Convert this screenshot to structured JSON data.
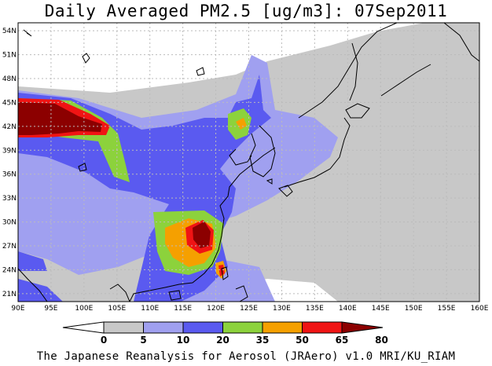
{
  "title": "Daily Averaged PM2.5 [ug/m3]: 07Sep2011",
  "credit": "The Japanese Reanalysis for Aerosol (JRAero) v1.0 MRI/KU_RIAM",
  "map": {
    "lon_range": [
      90,
      160
    ],
    "lat_range": [
      20,
      55
    ],
    "lon_ticks": [
      "90E",
      "95E",
      "100E",
      "105E",
      "110E",
      "115E",
      "120E",
      "125E",
      "130E",
      "135E",
      "140E",
      "145E",
      "150E",
      "155E",
      "160E"
    ],
    "lat_ticks": [
      "21N",
      "24N",
      "27N",
      "30N",
      "33N",
      "36N",
      "39N",
      "42N",
      "45N",
      "48N",
      "51N",
      "54N"
    ],
    "grid": true,
    "coastline_color": "#000000"
  },
  "colorbar": {
    "labels": [
      "0",
      "5",
      "10",
      "20",
      "35",
      "50",
      "65",
      "80"
    ],
    "colors": [
      "#ffffff",
      "#c8c8c8",
      "#a0a0f0",
      "#5a5af0",
      "#8cd23c",
      "#f5a000",
      "#f01414",
      "#8c0000"
    ]
  }
}
